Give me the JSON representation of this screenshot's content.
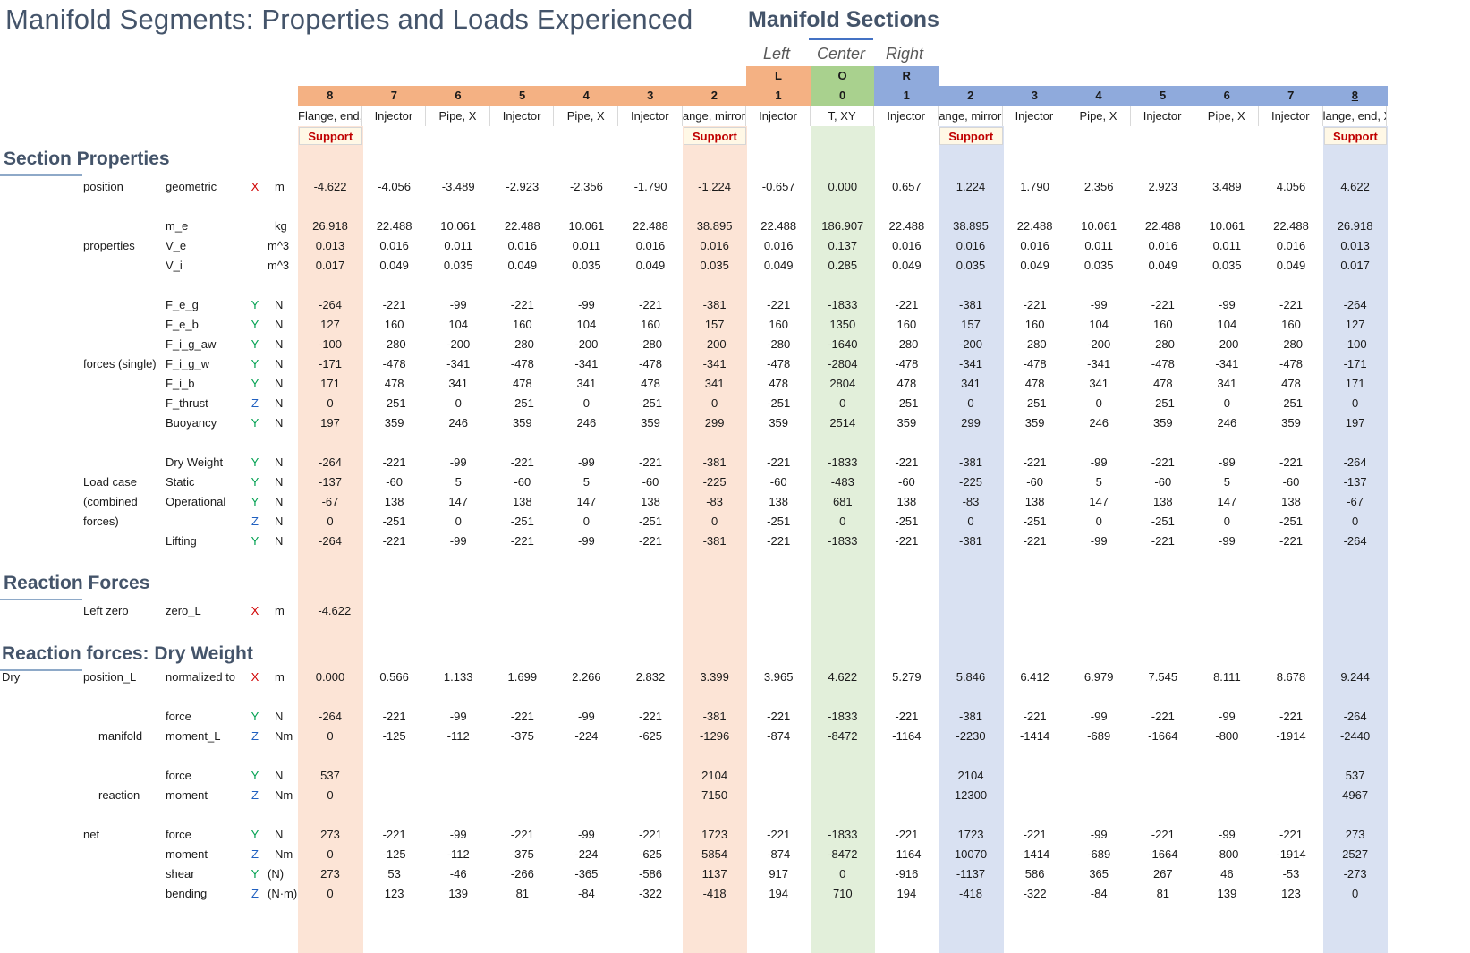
{
  "title": "Manifold Segments: Properties and Loads Experienced",
  "sections_title": "Manifold Sections",
  "side_labels": [
    "Left",
    "Center",
    "Right"
  ],
  "group_letters": [
    "L",
    "O",
    "R"
  ],
  "colors": {
    "left": "#f4b183",
    "left_light": "#fce4d6",
    "center": "#a9d18e",
    "center_light": "#e2efda",
    "right": "#8faadc",
    "right_light": "#d9e1f2"
  },
  "columns": [
    {
      "num": "8",
      "type": "Flange, end,",
      "support": "Support",
      "side": "left"
    },
    {
      "num": "7",
      "type": "Injector",
      "support": "",
      "side": "left"
    },
    {
      "num": "6",
      "type": "Pipe, X",
      "support": "",
      "side": "left"
    },
    {
      "num": "5",
      "type": "Injector",
      "support": "",
      "side": "left"
    },
    {
      "num": "4",
      "type": "Pipe, X",
      "support": "",
      "side": "left"
    },
    {
      "num": "3",
      "type": "Injector",
      "support": "",
      "side": "left"
    },
    {
      "num": "2",
      "type": "ange, mirror",
      "support": "Support",
      "side": "left"
    },
    {
      "num": "1",
      "type": "Injector",
      "support": "",
      "side": "left"
    },
    {
      "num": "0",
      "type": "T, XY",
      "support": "",
      "side": "center"
    },
    {
      "num": "1",
      "type": "Injector",
      "support": "",
      "side": "right"
    },
    {
      "num": "2",
      "type": "ange, mirror",
      "support": "Support",
      "side": "right"
    },
    {
      "num": "3",
      "type": "Injector",
      "support": "",
      "side": "right"
    },
    {
      "num": "4",
      "type": "Pipe, X",
      "support": "",
      "side": "right"
    },
    {
      "num": "5",
      "type": "Injector",
      "support": "",
      "side": "right"
    },
    {
      "num": "6",
      "type": "Pipe, X",
      "support": "",
      "side": "right"
    },
    {
      "num": "7",
      "type": "Injector",
      "support": "",
      "side": "right"
    },
    {
      "num": "8",
      "type": "lange, end, X",
      "support": "Support",
      "side": "right"
    }
  ],
  "section_heads": [
    "Section Properties",
    "Reaction Forces",
    "Reaction forces: Dry Weight"
  ],
  "groups": [
    {
      "text": "position",
      "row": 0
    },
    {
      "text": "properties",
      "row": 3
    },
    {
      "text": "forces (single)",
      "row": 10
    },
    {
      "text": "Load case",
      "row": 15
    },
    {
      "text": "(combined",
      "row": 16
    },
    {
      "text": "forces)",
      "row": 17
    },
    {
      "text": "Left zero",
      "row": 20
    },
    {
      "text": "Dry",
      "row": 21,
      "indent": "far"
    },
    {
      "text": "position_L",
      "row": 21
    },
    {
      "text": "manifold",
      "row": 23,
      "indent": "mid"
    },
    {
      "text": "reaction",
      "row": 25,
      "indent": "mid"
    },
    {
      "text": "net",
      "row": 26
    }
  ],
  "rows": [
    {
      "name": "geometric",
      "axis": "X",
      "unit": "m",
      "values": [
        "-4.622",
        "-4.056",
        "-3.489",
        "-2.923",
        "-2.356",
        "-1.790",
        "-1.224",
        "-0.657",
        "0.000",
        "0.657",
        "1.224",
        "1.790",
        "2.356",
        "2.923",
        "3.489",
        "4.056",
        "4.622"
      ]
    },
    {
      "name": "m_e",
      "axis": "",
      "unit": "kg",
      "values": [
        "26.918",
        "22.488",
        "10.061",
        "22.488",
        "10.061",
        "22.488",
        "38.895",
        "22.488",
        "186.907",
        "22.488",
        "38.895",
        "22.488",
        "10.061",
        "22.488",
        "10.061",
        "22.488",
        "26.918"
      ]
    },
    {
      "name": "V_e",
      "axis": "",
      "unit": "m^3",
      "values": [
        "0.013",
        "0.016",
        "0.011",
        "0.016",
        "0.011",
        "0.016",
        "0.016",
        "0.016",
        "0.137",
        "0.016",
        "0.016",
        "0.016",
        "0.011",
        "0.016",
        "0.011",
        "0.016",
        "0.013"
      ]
    },
    {
      "name": "V_i",
      "axis": "",
      "unit": "m^3",
      "values": [
        "0.017",
        "0.049",
        "0.035",
        "0.049",
        "0.035",
        "0.049",
        "0.035",
        "0.049",
        "0.285",
        "0.049",
        "0.035",
        "0.049",
        "0.035",
        "0.049",
        "0.035",
        "0.049",
        "0.017"
      ]
    },
    {
      "name": "F_e_g",
      "axis": "Y",
      "unit": "N",
      "values": [
        "-264",
        "-221",
        "-99",
        "-221",
        "-99",
        "-221",
        "-381",
        "-221",
        "-1833",
        "-221",
        "-381",
        "-221",
        "-99",
        "-221",
        "-99",
        "-221",
        "-264"
      ]
    },
    {
      "name": "F_e_b",
      "axis": "Y",
      "unit": "N",
      "values": [
        "127",
        "160",
        "104",
        "160",
        "104",
        "160",
        "157",
        "160",
        "1350",
        "160",
        "157",
        "160",
        "104",
        "160",
        "104",
        "160",
        "127"
      ]
    },
    {
      "name": "F_i_g_aw",
      "axis": "Y",
      "unit": "N",
      "values": [
        "-100",
        "-280",
        "-200",
        "-280",
        "-200",
        "-280",
        "-200",
        "-280",
        "-1640",
        "-280",
        "-200",
        "-280",
        "-200",
        "-280",
        "-200",
        "-280",
        "-100"
      ]
    },
    {
      "name": "F_i_g_w",
      "axis": "Y",
      "unit": "N",
      "values": [
        "-171",
        "-478",
        "-341",
        "-478",
        "-341",
        "-478",
        "-341",
        "-478",
        "-2804",
        "-478",
        "-341",
        "-478",
        "-341",
        "-478",
        "-341",
        "-478",
        "-171"
      ]
    },
    {
      "name": "F_i_b",
      "axis": "Y",
      "unit": "N",
      "values": [
        "171",
        "478",
        "341",
        "478",
        "341",
        "478",
        "341",
        "478",
        "2804",
        "478",
        "341",
        "478",
        "341",
        "478",
        "341",
        "478",
        "171"
      ]
    },
    {
      "name": "F_thrust",
      "axis": "Z",
      "unit": "N",
      "values": [
        "0",
        "-251",
        "0",
        "-251",
        "0",
        "-251",
        "0",
        "-251",
        "0",
        "-251",
        "0",
        "-251",
        "0",
        "-251",
        "0",
        "-251",
        "0"
      ]
    },
    {
      "name": "Buoyancy",
      "axis": "Y",
      "unit": "N",
      "values": [
        "197",
        "359",
        "246",
        "359",
        "246",
        "359",
        "299",
        "359",
        "2514",
        "359",
        "299",
        "359",
        "246",
        "359",
        "246",
        "359",
        "197"
      ]
    },
    {
      "name": "Dry Weight",
      "axis": "Y",
      "unit": "N",
      "values": [
        "-264",
        "-221",
        "-99",
        "-221",
        "-99",
        "-221",
        "-381",
        "-221",
        "-1833",
        "-221",
        "-381",
        "-221",
        "-99",
        "-221",
        "-99",
        "-221",
        "-264"
      ]
    },
    {
      "name": "Static",
      "axis": "Y",
      "unit": "N",
      "values": [
        "-137",
        "-60",
        "5",
        "-60",
        "5",
        "-60",
        "-225",
        "-60",
        "-483",
        "-60",
        "-225",
        "-60",
        "5",
        "-60",
        "5",
        "-60",
        "-137"
      ]
    },
    {
      "name": "Operational",
      "axis": "Y",
      "unit": "N",
      "values": [
        "-67",
        "138",
        "147",
        "138",
        "147",
        "138",
        "-83",
        "138",
        "681",
        "138",
        "-83",
        "138",
        "147",
        "138",
        "147",
        "138",
        "-67"
      ]
    },
    {
      "name": "",
      "axis": "Z",
      "unit": "N",
      "values": [
        "0",
        "-251",
        "0",
        "-251",
        "0",
        "-251",
        "0",
        "-251",
        "0",
        "-251",
        "0",
        "-251",
        "0",
        "-251",
        "0",
        "-251",
        "0"
      ]
    },
    {
      "name": "Lifting",
      "axis": "Y",
      "unit": "N",
      "values": [
        "-264",
        "-221",
        "-99",
        "-221",
        "-99",
        "-221",
        "-381",
        "-221",
        "-1833",
        "-221",
        "-381",
        "-221",
        "-99",
        "-221",
        "-99",
        "-221",
        "-264"
      ]
    },
    {
      "name": "zero_L",
      "axis": "X",
      "unit": "m",
      "values": [
        "-4.622",
        "",
        "",
        "",
        "",
        "",
        "",
        "",
        "",
        "",
        "",
        "",
        "",
        "",
        "",
        "",
        ""
      ]
    },
    {
      "name": "normalized to",
      "axis": "X",
      "unit": "m",
      "values": [
        "0.000",
        "0.566",
        "1.133",
        "1.699",
        "2.266",
        "2.832",
        "3.399",
        "3.965",
        "4.622",
        "5.279",
        "5.846",
        "6.412",
        "6.979",
        "7.545",
        "8.111",
        "8.678",
        "9.244"
      ]
    },
    {
      "name": "force",
      "axis": "Y",
      "unit": "N",
      "values": [
        "-264",
        "-221",
        "-99",
        "-221",
        "-99",
        "-221",
        "-381",
        "-221",
        "-1833",
        "-221",
        "-381",
        "-221",
        "-99",
        "-221",
        "-99",
        "-221",
        "-264"
      ]
    },
    {
      "name": "moment_L",
      "axis": "Z",
      "unit": "Nm",
      "values": [
        "0",
        "-125",
        "-112",
        "-375",
        "-224",
        "-625",
        "-1296",
        "-874",
        "-8472",
        "-1164",
        "-2230",
        "-1414",
        "-689",
        "-1664",
        "-800",
        "-1914",
        "-2440"
      ]
    },
    {
      "name": "force",
      "axis": "Y",
      "unit": "N",
      "values": [
        "537",
        "",
        "",
        "",
        "",
        "",
        "2104",
        "",
        "",
        "",
        "2104",
        "",
        "",
        "",
        "",
        "",
        "537"
      ]
    },
    {
      "name": "moment",
      "axis": "Z",
      "unit": "Nm",
      "values": [
        "0",
        "",
        "",
        "",
        "",
        "",
        "7150",
        "",
        "",
        "",
        "12300",
        "",
        "",
        "",
        "",
        "",
        "4967"
      ]
    },
    {
      "name": "force",
      "axis": "Y",
      "unit": "N",
      "values": [
        "273",
        "-221",
        "-99",
        "-221",
        "-99",
        "-221",
        "1723",
        "-221",
        "-1833",
        "-221",
        "1723",
        "-221",
        "-99",
        "-221",
        "-99",
        "-221",
        "273"
      ]
    },
    {
      "name": "moment",
      "axis": "Z",
      "unit": "Nm",
      "values": [
        "0",
        "-125",
        "-112",
        "-375",
        "-224",
        "-625",
        "5854",
        "-874",
        "-8472",
        "-1164",
        "10070",
        "-1414",
        "-689",
        "-1664",
        "-800",
        "-1914",
        "2527"
      ]
    },
    {
      "name": "shear",
      "axis": "Y",
      "unit": "(N)",
      "values": [
        "273",
        "53",
        "-46",
        "-266",
        "-365",
        "-586",
        "1137",
        "917",
        "0",
        "-916",
        "-1137",
        "586",
        "365",
        "267",
        "46",
        "-53",
        "-273"
      ]
    },
    {
      "name": "bending",
      "axis": "Z",
      "unit": "(N·m)",
      "values": [
        "0",
        "123",
        "139",
        "81",
        "-84",
        "-322",
        "-418",
        "194",
        "710",
        "194",
        "-418",
        "-322",
        "-84",
        "81",
        "139",
        "123",
        "0"
      ]
    }
  ]
}
